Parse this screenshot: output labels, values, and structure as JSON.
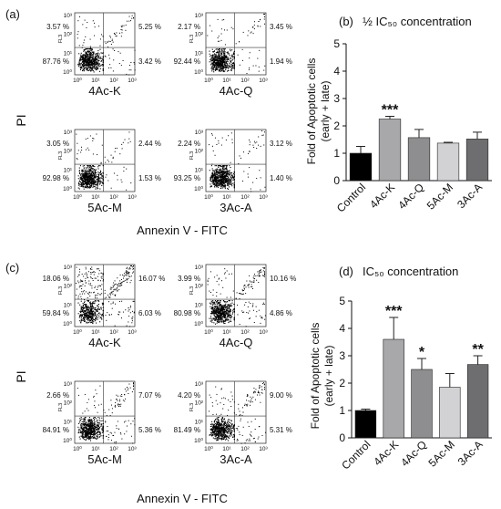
{
  "panels": {
    "a": {
      "label": "(a)",
      "ylabel": "PI",
      "xlabel": "Annexin V - FITC",
      "plots": [
        {
          "name": "4Ac-K",
          "q": [
            "3.57 %",
            "5.25 %",
            "87.76 %",
            "3.42 %"
          ]
        },
        {
          "name": "4Ac-Q",
          "q": [
            "2.17 %",
            "3.45 %",
            "92.44 %",
            "1.94 %"
          ]
        },
        {
          "name": "5Ac-M",
          "q": [
            "3.05 %",
            "2.44 %",
            "92.98 %",
            "1.53 %"
          ]
        },
        {
          "name": "3Ac-A",
          "q": [
            "2.24 %",
            "3.12 %",
            "93.25 %",
            "1.40 %"
          ]
        }
      ]
    },
    "c": {
      "label": "(c)",
      "ylabel": "PI",
      "xlabel": "Annexin V - FITC",
      "plots": [
        {
          "name": "4Ac-K",
          "q": [
            "18.06 %",
            "16.07 %",
            "59.84 %",
            "6.03 %"
          ]
        },
        {
          "name": "4Ac-Q",
          "q": [
            "3.99 %",
            "10.16 %",
            "80.98 %",
            "4.86 %"
          ]
        },
        {
          "name": "5Ac-M",
          "q": [
            "2.66 %",
            "7.07 %",
            "84.91 %",
            "5.36 %"
          ]
        },
        {
          "name": "3Ac-A",
          "q": [
            "4.20 %",
            "9.00 %",
            "81.49 %",
            "5.31 %"
          ]
        }
      ]
    },
    "flow_axis": {
      "fl3": "FL3",
      "yticks": [
        "10³",
        "10²",
        "10¹",
        "10⁰"
      ],
      "xticks": [
        "10⁰",
        "10¹",
        "10²",
        "10³"
      ]
    }
  },
  "chart_data": [
    {
      "type": "bar",
      "label": "(b)",
      "title": "½ IC₅₀ concentration",
      "ylabel_line1": "Fold of Apoptotic cells",
      "ylabel_line2": "(early + late)",
      "categories": [
        "Control",
        "4Ac-K",
        "4Ac-Q",
        "5Ac-M",
        "3Ac-A"
      ],
      "values": [
        1.0,
        2.25,
        1.57,
        1.37,
        1.52
      ],
      "errors": [
        0.25,
        0.1,
        0.3,
        0.03,
        0.25
      ],
      "significance": [
        "",
        "***",
        "",
        "",
        ""
      ],
      "colors": [
        "#000000",
        "#a8a8aa",
        "#8e8e90",
        "#d2d2d4",
        "#6e6e70"
      ],
      "ylim": [
        0,
        5
      ],
      "yticks": [
        0,
        1,
        2,
        3,
        4,
        5
      ]
    },
    {
      "type": "bar",
      "label": "(d)",
      "title": "IC₅₀ concentration",
      "ylabel_line1": "Fold of Apoptotic cells",
      "ylabel_line2": "(early + late)",
      "categories": [
        "Control",
        "4Ac-K",
        "4Ac-Q",
        "5Ac-M",
        "3Ac-A"
      ],
      "values": [
        1.0,
        3.6,
        2.5,
        1.85,
        2.68
      ],
      "errors": [
        0.05,
        0.8,
        0.4,
        0.5,
        0.32
      ],
      "significance": [
        "",
        "***",
        "*",
        "",
        "**"
      ],
      "colors": [
        "#000000",
        "#a8a8aa",
        "#8e8e90",
        "#d2d2d4",
        "#6e6e70"
      ],
      "ylim": [
        0,
        5
      ],
      "yticks": [
        0,
        1,
        2,
        3,
        4,
        5
      ]
    }
  ]
}
